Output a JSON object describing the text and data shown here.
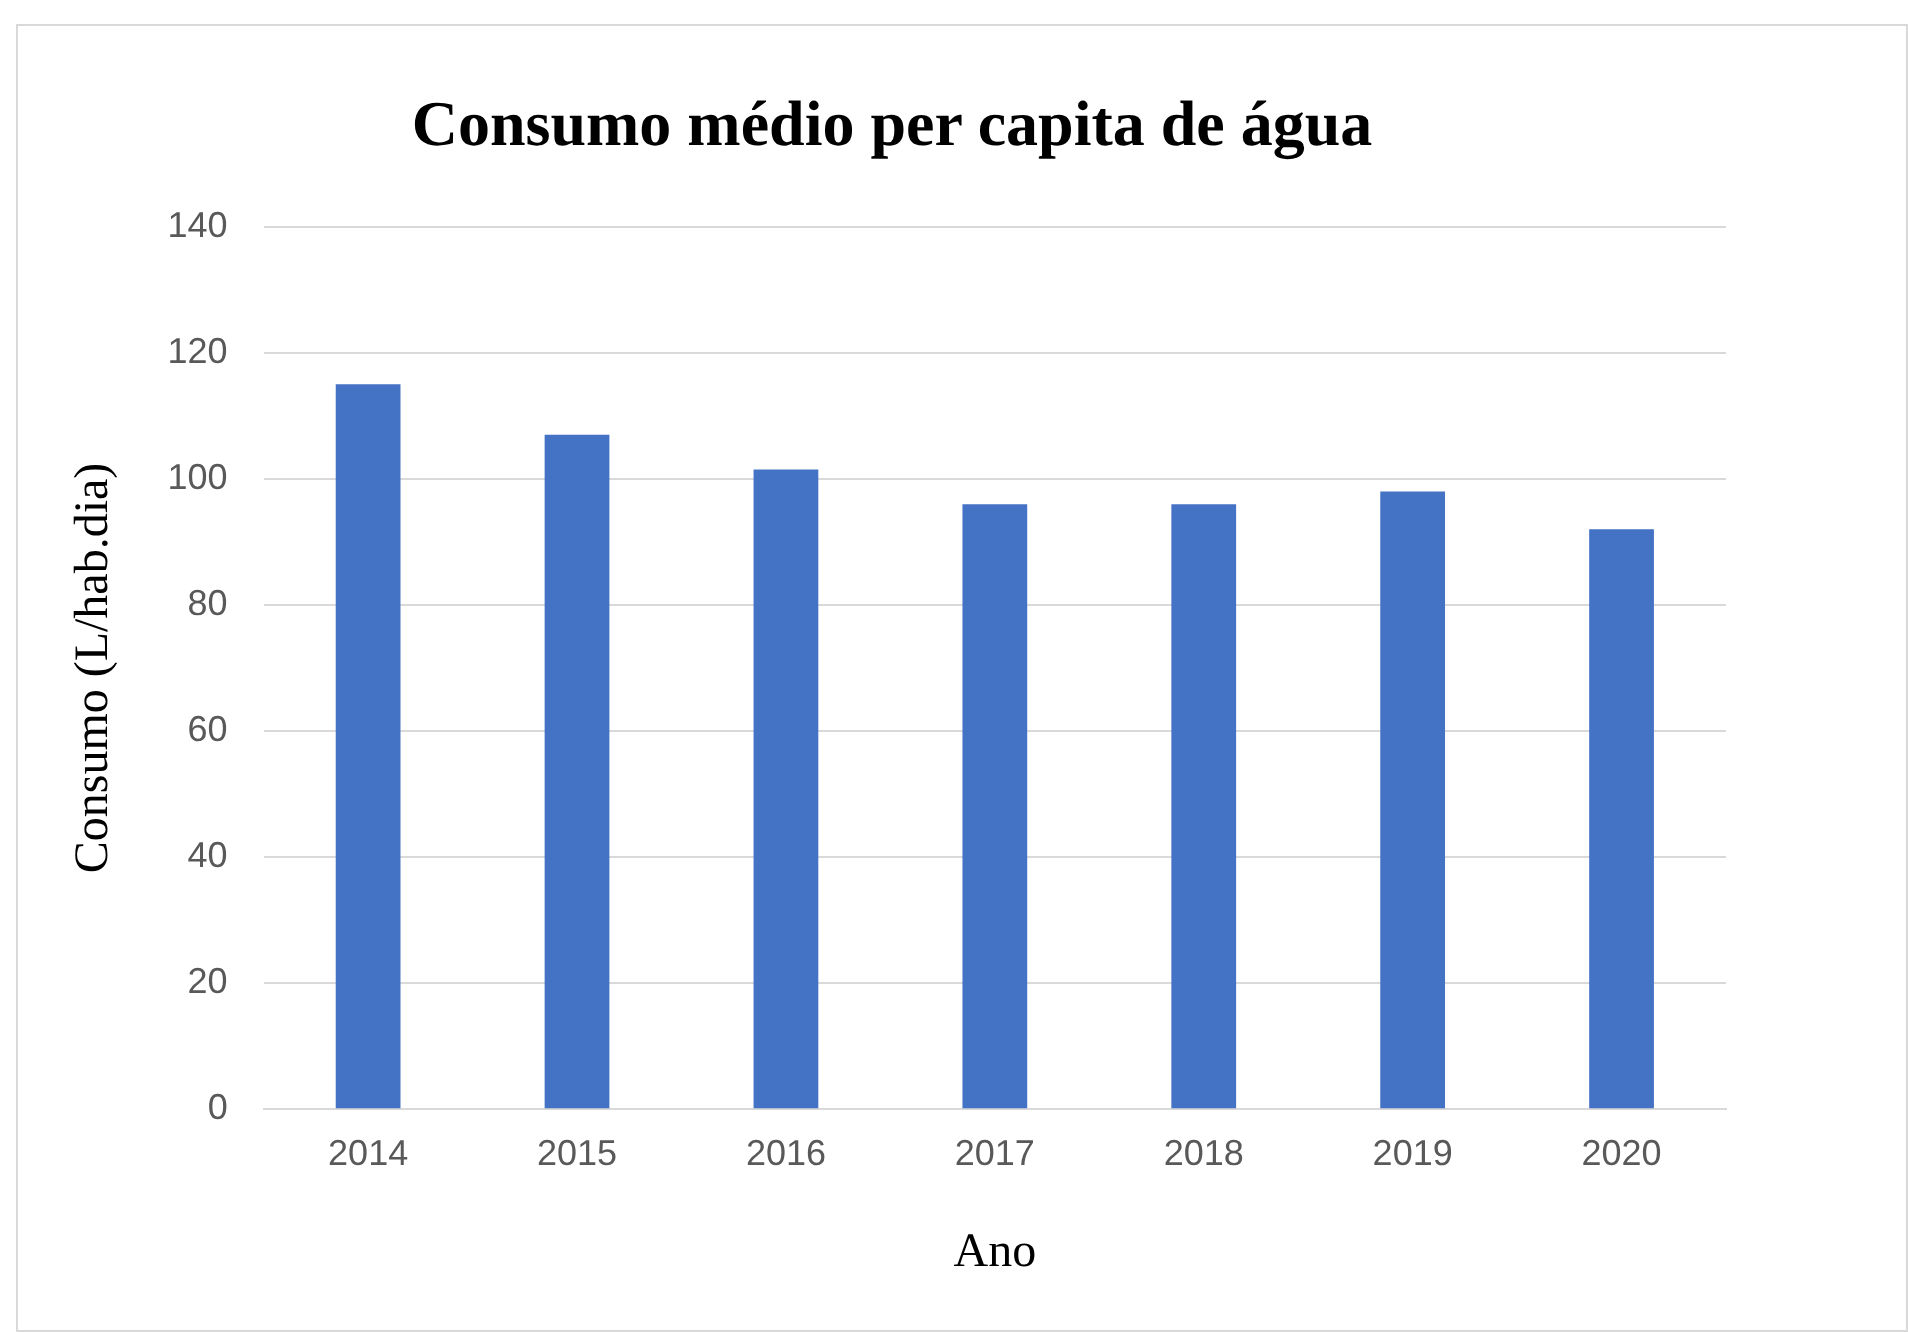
{
  "chart_data": {
    "type": "bar",
    "title": "Consumo médio per capita de água",
    "xlabel": "Ano",
    "ylabel": "Consumo (L/hab.dia)",
    "categories": [
      "2014",
      "2015",
      "2016",
      "2017",
      "2018",
      "2019",
      "2020"
    ],
    "values": [
      115,
      107,
      101.5,
      96,
      96,
      98,
      92
    ],
    "color": "#4472c4",
    "ylim": [
      0,
      140
    ],
    "yticks": [
      0,
      20,
      40,
      60,
      80,
      100,
      120,
      140
    ],
    "grid": "y",
    "legend": false
  }
}
